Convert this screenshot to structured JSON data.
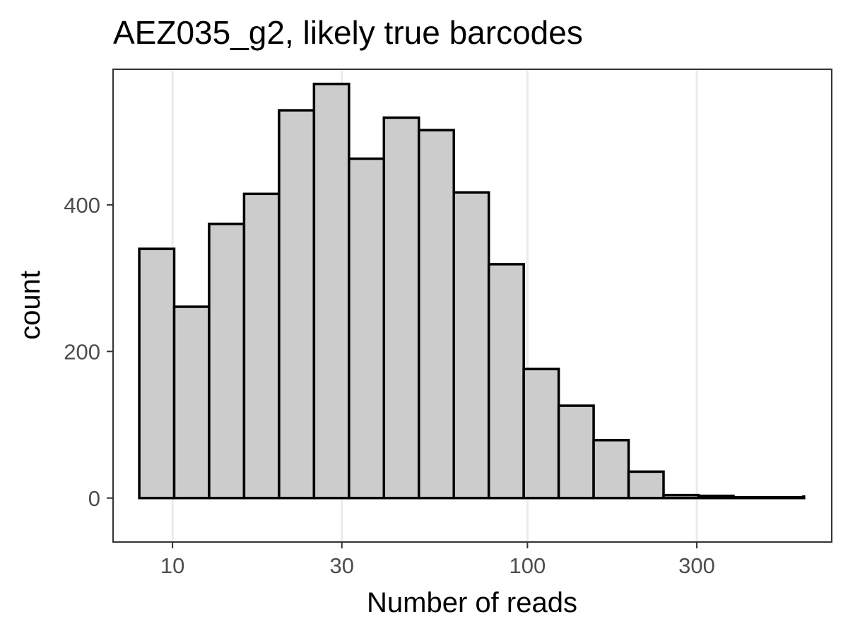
{
  "chart_data": {
    "type": "bar",
    "title": "AEZ035_g2, likely true barcodes",
    "xlabel": "Number of reads",
    "ylabel": "count",
    "x_scale": "log10",
    "xlim": [
      6.8,
      720
    ],
    "ylim": [
      -60,
      585
    ],
    "x_ticks": [
      {
        "value": 10,
        "label": "10"
      },
      {
        "value": 30,
        "label": "30"
      },
      {
        "value": 100,
        "label": "100"
      },
      {
        "value": 300,
        "label": "300"
      }
    ],
    "y_ticks": [
      {
        "value": 0,
        "label": "0"
      },
      {
        "value": 200,
        "label": "200"
      },
      {
        "value": 400,
        "label": "400"
      }
    ],
    "grid": "vertical-major",
    "series": [
      {
        "bins": [
          {
            "x0": 8.06,
            "x1": 10.11,
            "count": 340
          },
          {
            "x0": 10.11,
            "x1": 12.68,
            "count": 261
          },
          {
            "x0": 12.68,
            "x1": 15.91,
            "count": 374
          },
          {
            "x0": 15.91,
            "x1": 19.96,
            "count": 415
          },
          {
            "x0": 19.96,
            "x1": 25.04,
            "count": 529
          },
          {
            "x0": 25.04,
            "x1": 31.42,
            "count": 565
          },
          {
            "x0": 31.42,
            "x1": 39.41,
            "count": 463
          },
          {
            "x0": 39.41,
            "x1": 49.44,
            "count": 519
          },
          {
            "x0": 49.44,
            "x1": 62.03,
            "count": 502
          },
          {
            "x0": 62.03,
            "x1": 77.82,
            "count": 417
          },
          {
            "x0": 77.82,
            "x1": 97.62,
            "count": 319
          },
          {
            "x0": 97.62,
            "x1": 122.47,
            "count": 176
          },
          {
            "x0": 122.47,
            "x1": 153.64,
            "count": 126
          },
          {
            "x0": 153.64,
            "x1": 192.75,
            "count": 79
          },
          {
            "x0": 192.75,
            "x1": 241.81,
            "count": 36
          },
          {
            "x0": 241.81,
            "x1": 303.36,
            "count": 4
          },
          {
            "x0": 303.36,
            "x1": 380.57,
            "count": 3
          },
          {
            "x0": 380.57,
            "x1": 477.43,
            "count": 1
          },
          {
            "x0": 477.43,
            "x1": 598.95,
            "count": 1
          },
          {
            "x0": 598.95,
            "x1": 751.39,
            "count": 2
          }
        ]
      }
    ],
    "colors": {
      "bar_fill": "#cccccc",
      "bar_stroke": "#000000",
      "grid": "#ebebeb",
      "panel_border": "#333333"
    }
  }
}
